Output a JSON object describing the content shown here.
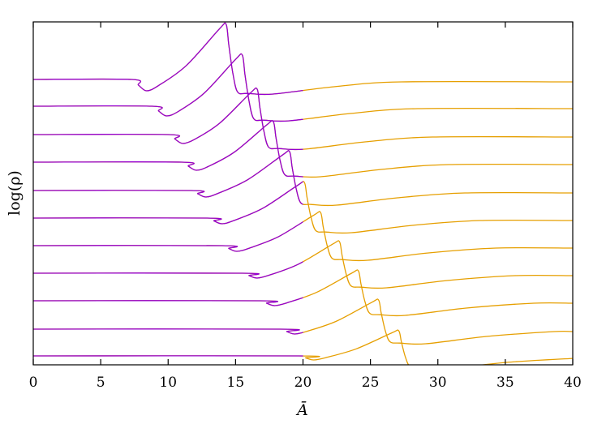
{
  "chart_data": {
    "type": "line",
    "xlabel": "Ā",
    "ylabel": "log(ρ)",
    "xlim": [
      0,
      40
    ],
    "ylim": [
      0,
      42.3
    ],
    "xticks": [
      "0",
      "5",
      "10",
      "15",
      "20",
      "25",
      "30",
      "35",
      "40"
    ],
    "yticks": [],
    "grid": false,
    "legend": "none",
    "colors": {
      "inner_segment": "#9400D3",
      "full_profile": "#E69F00"
    },
    "inner_segment_xmax": 20,
    "profiles": [
      {
        "baseline": 35.2,
        "dip_start_x": 7.3,
        "dip_min_y": 33.8,
        "peak_x": 14.3,
        "peak_y": 42.0,
        "post_shock_min_y": 33.4,
        "far_y": 34.9
      },
      {
        "baseline": 31.9,
        "dip_start_x": 8.8,
        "dip_min_y": 30.7,
        "peak_x": 15.5,
        "peak_y": 38.2,
        "post_shock_min_y": 30.1,
        "far_y": 31.6
      },
      {
        "baseline": 28.4,
        "dip_start_x": 10.0,
        "dip_min_y": 27.3,
        "peak_x": 16.6,
        "peak_y": 34.0,
        "post_shock_min_y": 26.6,
        "far_y": 28.1
      },
      {
        "baseline": 25.0,
        "dip_start_x": 11.0,
        "dip_min_y": 24.0,
        "peak_x": 17.8,
        "peak_y": 30.0,
        "post_shock_min_y": 23.2,
        "far_y": 24.7
      },
      {
        "baseline": 21.5,
        "dip_start_x": 11.7,
        "dip_min_y": 20.7,
        "peak_x": 19.0,
        "peak_y": 26.3,
        "post_shock_min_y": 19.7,
        "far_y": 21.2
      },
      {
        "baseline": 18.1,
        "dip_start_x": 12.9,
        "dip_min_y": 17.4,
        "peak_x": 20.1,
        "peak_y": 22.5,
        "post_shock_min_y": 16.3,
        "far_y": 17.8
      },
      {
        "baseline": 14.7,
        "dip_start_x": 14.0,
        "dip_min_y": 14.0,
        "peak_x": 21.3,
        "peak_y": 18.8,
        "post_shock_min_y": 12.9,
        "far_y": 14.4
      },
      {
        "baseline": 11.3,
        "dip_start_x": 15.5,
        "dip_min_y": 10.7,
        "peak_x": 22.7,
        "peak_y": 15.2,
        "post_shock_min_y": 9.5,
        "far_y": 11.0
      },
      {
        "baseline": 7.9,
        "dip_start_x": 16.8,
        "dip_min_y": 7.3,
        "peak_x": 24.1,
        "peak_y": 11.6,
        "post_shock_min_y": 6.1,
        "far_y": 7.6
      },
      {
        "baseline": 4.4,
        "dip_start_x": 18.3,
        "dip_min_y": 3.8,
        "peak_x": 25.6,
        "peak_y": 8.0,
        "post_shock_min_y": 2.6,
        "far_y": 4.1
      },
      {
        "baseline": 1.1,
        "dip_start_x": 19.7,
        "dip_min_y": 0.6,
        "peak_x": 27.1,
        "peak_y": 4.2,
        "post_shock_min_y": -0.5,
        "far_y": 0.8
      }
    ]
  }
}
